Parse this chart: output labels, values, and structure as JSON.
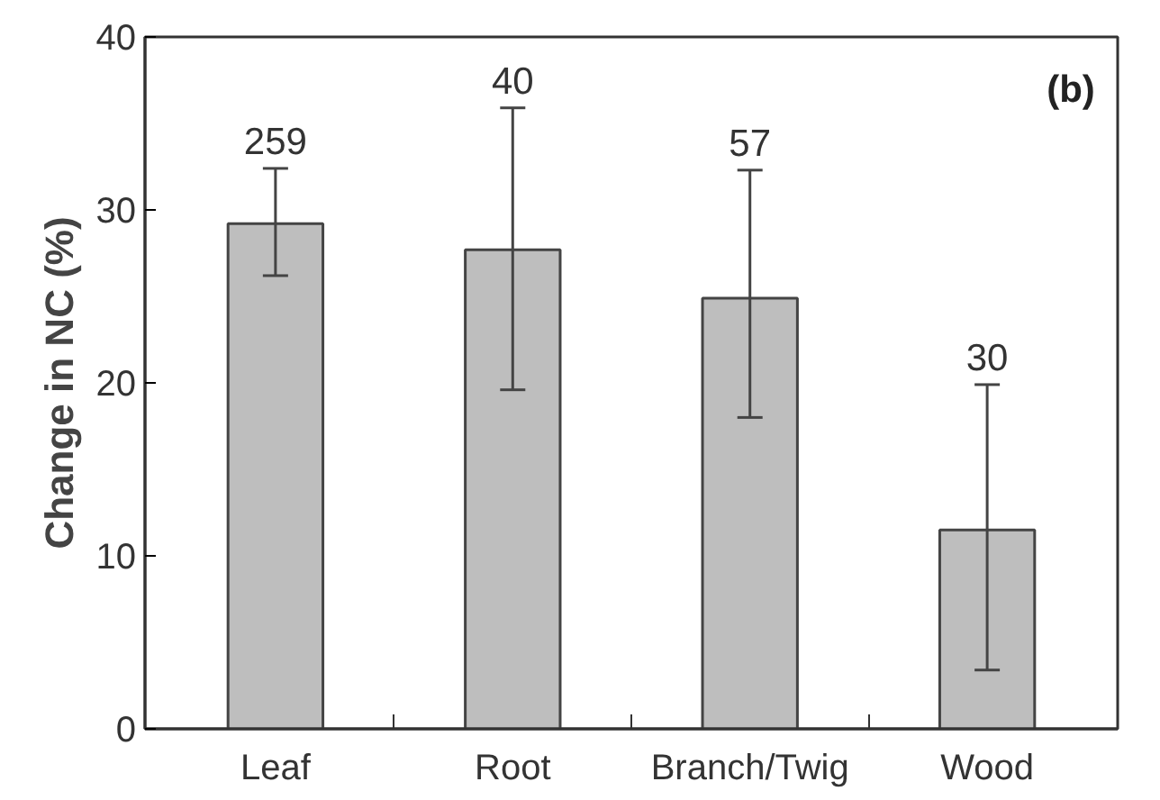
{
  "chart_data": {
    "type": "bar",
    "ylabel": "Change in NC (%)",
    "categories": [
      "Leaf",
      "Root",
      "Branch/Twig",
      "Wood"
    ],
    "values": [
      29.2,
      27.7,
      24.9,
      11.5
    ],
    "errors": [
      [
        26.2,
        32.4
      ],
      [
        19.6,
        35.9
      ],
      [
        18.0,
        32.3
      ],
      [
        3.4,
        19.9
      ]
    ],
    "color": "#bebebe",
    "ylim": [
      0,
      40
    ],
    "yticks": [
      0,
      10,
      20,
      30,
      40
    ],
    "grid": false,
    "annotations": [
      {
        "text": "259",
        "x": "Leaf",
        "y": 32.4
      },
      {
        "text": "40",
        "x": "Root",
        "y": 35.9
      },
      {
        "text": "57",
        "x": "Branch/Twig",
        "y": 32.3
      },
      {
        "text": "30",
        "x": "Wood",
        "y": 19.9
      },
      "(b)"
    ]
  }
}
